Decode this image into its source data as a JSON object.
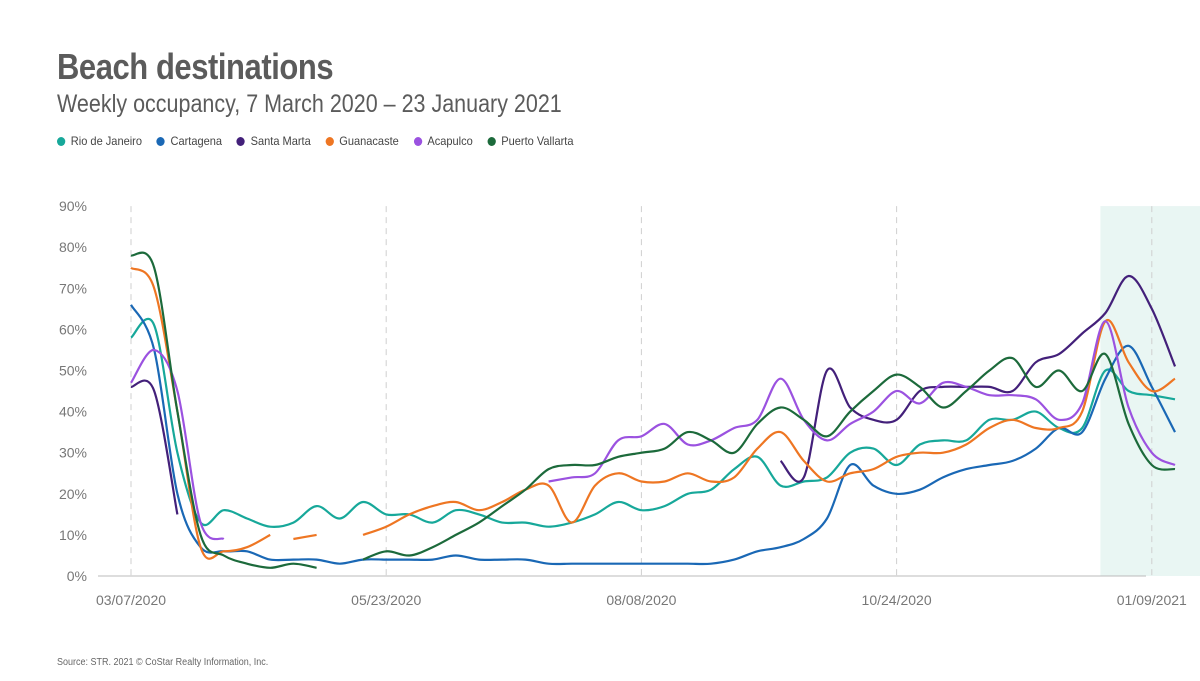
{
  "chart_data": {
    "type": "line",
    "title": "Beach destinations",
    "subtitle": "Weekly occupancy, 7 March 2020 – 23 January 2021",
    "source": "Source: STR. 2021 © CoStar Realty Information, Inc.",
    "x_ticks": [
      "03/07/2020",
      "05/23/2020",
      "08/08/2020",
      "10/24/2020",
      "01/09/2021"
    ],
    "y_ticks": [
      "0%",
      "10%",
      "20%",
      "30%",
      "40%",
      "50%",
      "60%",
      "70%",
      "80%",
      "90%"
    ],
    "ylim": [
      0,
      90
    ],
    "xlim_weeks": [
      0,
      46
    ],
    "y_unit": "%",
    "shaded_region": {
      "from_week": 42,
      "to_week": 46,
      "color": "#e9f6f3"
    },
    "grid": {
      "vertical_dashed_at_ticks": true,
      "horizontal": false
    },
    "legend_position": "top-left",
    "series": [
      {
        "name": "Rio de Janeiro",
        "color": "#17a89a",
        "points": [
          [
            0,
            58
          ],
          [
            1,
            61
          ],
          [
            2,
            30
          ],
          [
            3,
            13
          ],
          [
            4,
            16
          ],
          [
            5,
            14
          ],
          [
            6,
            12
          ],
          [
            7,
            13
          ],
          [
            8,
            17
          ],
          [
            9,
            14
          ],
          [
            10,
            18
          ],
          [
            11,
            15
          ],
          [
            12,
            15
          ],
          [
            13,
            13
          ],
          [
            14,
            16
          ],
          [
            15,
            15
          ],
          [
            16,
            13
          ],
          [
            17,
            13
          ],
          [
            18,
            12
          ],
          [
            19,
            13
          ],
          [
            20,
            15
          ],
          [
            21,
            18
          ],
          [
            22,
            16
          ],
          [
            23,
            17
          ],
          [
            24,
            20
          ],
          [
            25,
            21
          ],
          [
            26,
            26
          ],
          [
            27,
            29
          ],
          [
            28,
            22
          ],
          [
            29,
            23
          ],
          [
            30,
            24
          ],
          [
            31,
            30
          ],
          [
            32,
            31
          ],
          [
            33,
            27
          ],
          [
            34,
            32
          ],
          [
            35,
            33
          ],
          [
            36,
            33
          ],
          [
            37,
            38
          ],
          [
            38,
            38
          ],
          [
            39,
            40
          ],
          [
            40,
            36
          ],
          [
            41,
            36
          ],
          [
            42,
            50
          ],
          [
            43,
            45
          ],
          [
            44,
            44
          ],
          [
            45,
            43
          ]
        ]
      },
      {
        "name": "Cartagena",
        "color": "#1a68b5",
        "points": [
          [
            0,
            66
          ],
          [
            1,
            55
          ],
          [
            2,
            20
          ],
          [
            3,
            7
          ],
          [
            4,
            6
          ],
          [
            5,
            6
          ],
          [
            6,
            4
          ],
          [
            7,
            4
          ],
          [
            8,
            4
          ],
          [
            9,
            3
          ],
          [
            10,
            4
          ],
          [
            11,
            4
          ],
          [
            12,
            4
          ],
          [
            13,
            4
          ],
          [
            14,
            5
          ],
          [
            15,
            4
          ],
          [
            16,
            4
          ],
          [
            17,
            4
          ],
          [
            18,
            3
          ],
          [
            19,
            3
          ],
          [
            20,
            3
          ],
          [
            21,
            3
          ],
          [
            22,
            3
          ],
          [
            23,
            3
          ],
          [
            24,
            3
          ],
          [
            25,
            3
          ],
          [
            26,
            4
          ],
          [
            27,
            6
          ],
          [
            28,
            7
          ],
          [
            29,
            9
          ],
          [
            30,
            14
          ],
          [
            31,
            27
          ],
          [
            32,
            22
          ],
          [
            33,
            20
          ],
          [
            34,
            21
          ],
          [
            35,
            24
          ],
          [
            36,
            26
          ],
          [
            37,
            27
          ],
          [
            38,
            28
          ],
          [
            39,
            31
          ],
          [
            40,
            36
          ],
          [
            41,
            35
          ],
          [
            42,
            48
          ],
          [
            43,
            56
          ],
          [
            44,
            46
          ],
          [
            45,
            35
          ]
        ]
      },
      {
        "name": "Santa Marta",
        "color": "#43207a",
        "segments": [
          [
            [
              0,
              46
            ],
            [
              1,
              45
            ],
            [
              2,
              15
            ]
          ],
          [
            [
              28,
              28
            ],
            [
              29,
              24
            ],
            [
              30,
              50
            ],
            [
              31,
              41
            ],
            [
              32,
              38
            ],
            [
              33,
              38
            ],
            [
              34,
              45
            ],
            [
              35,
              46
            ],
            [
              36,
              46
            ],
            [
              37,
              46
            ],
            [
              38,
              45
            ],
            [
              39,
              52
            ],
            [
              40,
              54
            ],
            [
              41,
              59
            ],
            [
              42,
              64
            ],
            [
              43,
              73
            ],
            [
              44,
              65
            ],
            [
              45,
              51
            ]
          ]
        ]
      },
      {
        "name": "Guanacaste",
        "color": "#ee7623",
        "segments": [
          [
            [
              0,
              75
            ],
            [
              1,
              70
            ],
            [
              2,
              40
            ],
            [
              3,
              7
            ],
            [
              4,
              6
            ],
            [
              5,
              7
            ],
            [
              6,
              10
            ]
          ],
          [
            [
              7,
              9
            ],
            [
              8,
              10
            ]
          ],
          [
            [
              10,
              10
            ],
            [
              11,
              12
            ],
            [
              12,
              15
            ],
            [
              13,
              17
            ],
            [
              14,
              18
            ],
            [
              15,
              16
            ],
            [
              16,
              18
            ],
            [
              17,
              21
            ],
            [
              18,
              22
            ],
            [
              19,
              13
            ],
            [
              20,
              22
            ],
            [
              21,
              25
            ],
            [
              22,
              23
            ],
            [
              23,
              23
            ],
            [
              24,
              25
            ],
            [
              25,
              23
            ],
            [
              26,
              24
            ],
            [
              27,
              31
            ],
            [
              28,
              35
            ],
            [
              29,
              28
            ],
            [
              30,
              23
            ],
            [
              31,
              25
            ],
            [
              32,
              26
            ],
            [
              33,
              29
            ],
            [
              34,
              30
            ],
            [
              35,
              30
            ],
            [
              36,
              32
            ],
            [
              37,
              36
            ],
            [
              38,
              38
            ],
            [
              39,
              36
            ],
            [
              40,
              36
            ],
            [
              41,
              40
            ],
            [
              42,
              62
            ],
            [
              43,
              52
            ],
            [
              44,
              45
            ],
            [
              45,
              48
            ]
          ]
        ]
      },
      {
        "name": "Acapulco",
        "color": "#9b52e0",
        "segments": [
          [
            [
              0,
              47
            ],
            [
              1,
              55
            ],
            [
              2,
              45
            ],
            [
              3,
              13
            ],
            [
              4,
              9
            ]
          ],
          [
            [
              18,
              23
            ],
            [
              19,
              24
            ],
            [
              20,
              25
            ],
            [
              21,
              33
            ],
            [
              22,
              34
            ],
            [
              23,
              37
            ],
            [
              24,
              32
            ],
            [
              25,
              33
            ],
            [
              26,
              36
            ],
            [
              27,
              38
            ],
            [
              28,
              48
            ],
            [
              29,
              38
            ],
            [
              30,
              33
            ],
            [
              31,
              37
            ],
            [
              32,
              40
            ],
            [
              33,
              45
            ],
            [
              34,
              42
            ],
            [
              35,
              47
            ],
            [
              36,
              46
            ],
            [
              37,
              44
            ],
            [
              38,
              44
            ],
            [
              39,
              43
            ],
            [
              40,
              38
            ],
            [
              41,
              42
            ],
            [
              42,
              62
            ],
            [
              43,
              41
            ],
            [
              44,
              30
            ],
            [
              45,
              27
            ]
          ]
        ]
      },
      {
        "name": "Puerto Vallarta",
        "color": "#1c6a3b",
        "segments": [
          [
            [
              0,
              78
            ],
            [
              1,
              75
            ],
            [
              2,
              40
            ],
            [
              3,
              10
            ],
            [
              4,
              5
            ],
            [
              5,
              3
            ],
            [
              6,
              2
            ],
            [
              7,
              3
            ],
            [
              8,
              2
            ]
          ],
          [
            [
              10,
              4
            ],
            [
              11,
              6
            ],
            [
              12,
              5
            ],
            [
              13,
              7
            ],
            [
              14,
              10
            ],
            [
              15,
              13
            ],
            [
              16,
              17
            ],
            [
              17,
              21
            ],
            [
              18,
              26
            ],
            [
              19,
              27
            ],
            [
              20,
              27
            ],
            [
              21,
              29
            ],
            [
              22,
              30
            ],
            [
              23,
              31
            ],
            [
              24,
              35
            ],
            [
              25,
              33
            ],
            [
              26,
              30
            ],
            [
              27,
              37
            ],
            [
              28,
              41
            ],
            [
              29,
              38
            ],
            [
              30,
              34
            ],
            [
              31,
              40
            ],
            [
              32,
              45
            ],
            [
              33,
              49
            ],
            [
              34,
              46
            ],
            [
              35,
              41
            ],
            [
              36,
              45
            ],
            [
              37,
              50
            ],
            [
              38,
              53
            ],
            [
              39,
              46
            ],
            [
              40,
              50
            ],
            [
              41,
              45
            ],
            [
              42,
              54
            ],
            [
              43,
              37
            ],
            [
              44,
              27
            ],
            [
              45,
              26
            ]
          ]
        ]
      }
    ]
  }
}
